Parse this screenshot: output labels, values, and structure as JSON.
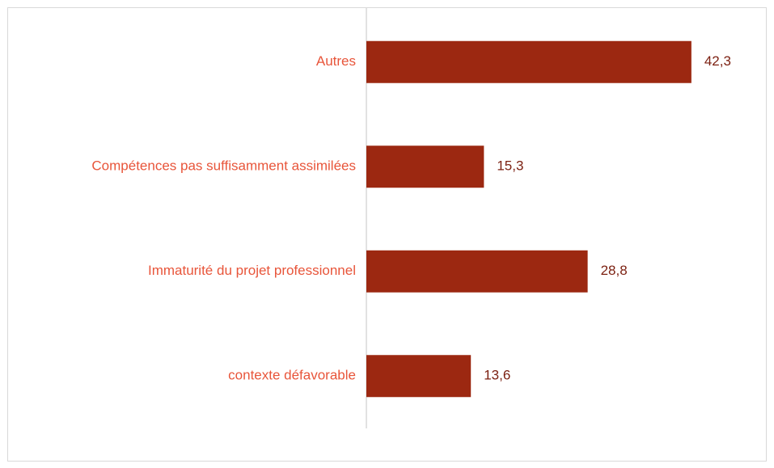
{
  "chart_data": {
    "type": "bar",
    "orientation": "horizontal",
    "categories": [
      "Autres",
      "Compétences pas suffisamment assimilées",
      "Immaturité du projet professionnel",
      "contexte défavorable"
    ],
    "values": [
      42.3,
      15.3,
      28.8,
      13.6
    ],
    "value_labels": [
      "42,3",
      "15,3",
      "28,8",
      "13,6"
    ],
    "color": "#9c2811",
    "xlim": [
      0,
      50
    ],
    "grid": false
  }
}
